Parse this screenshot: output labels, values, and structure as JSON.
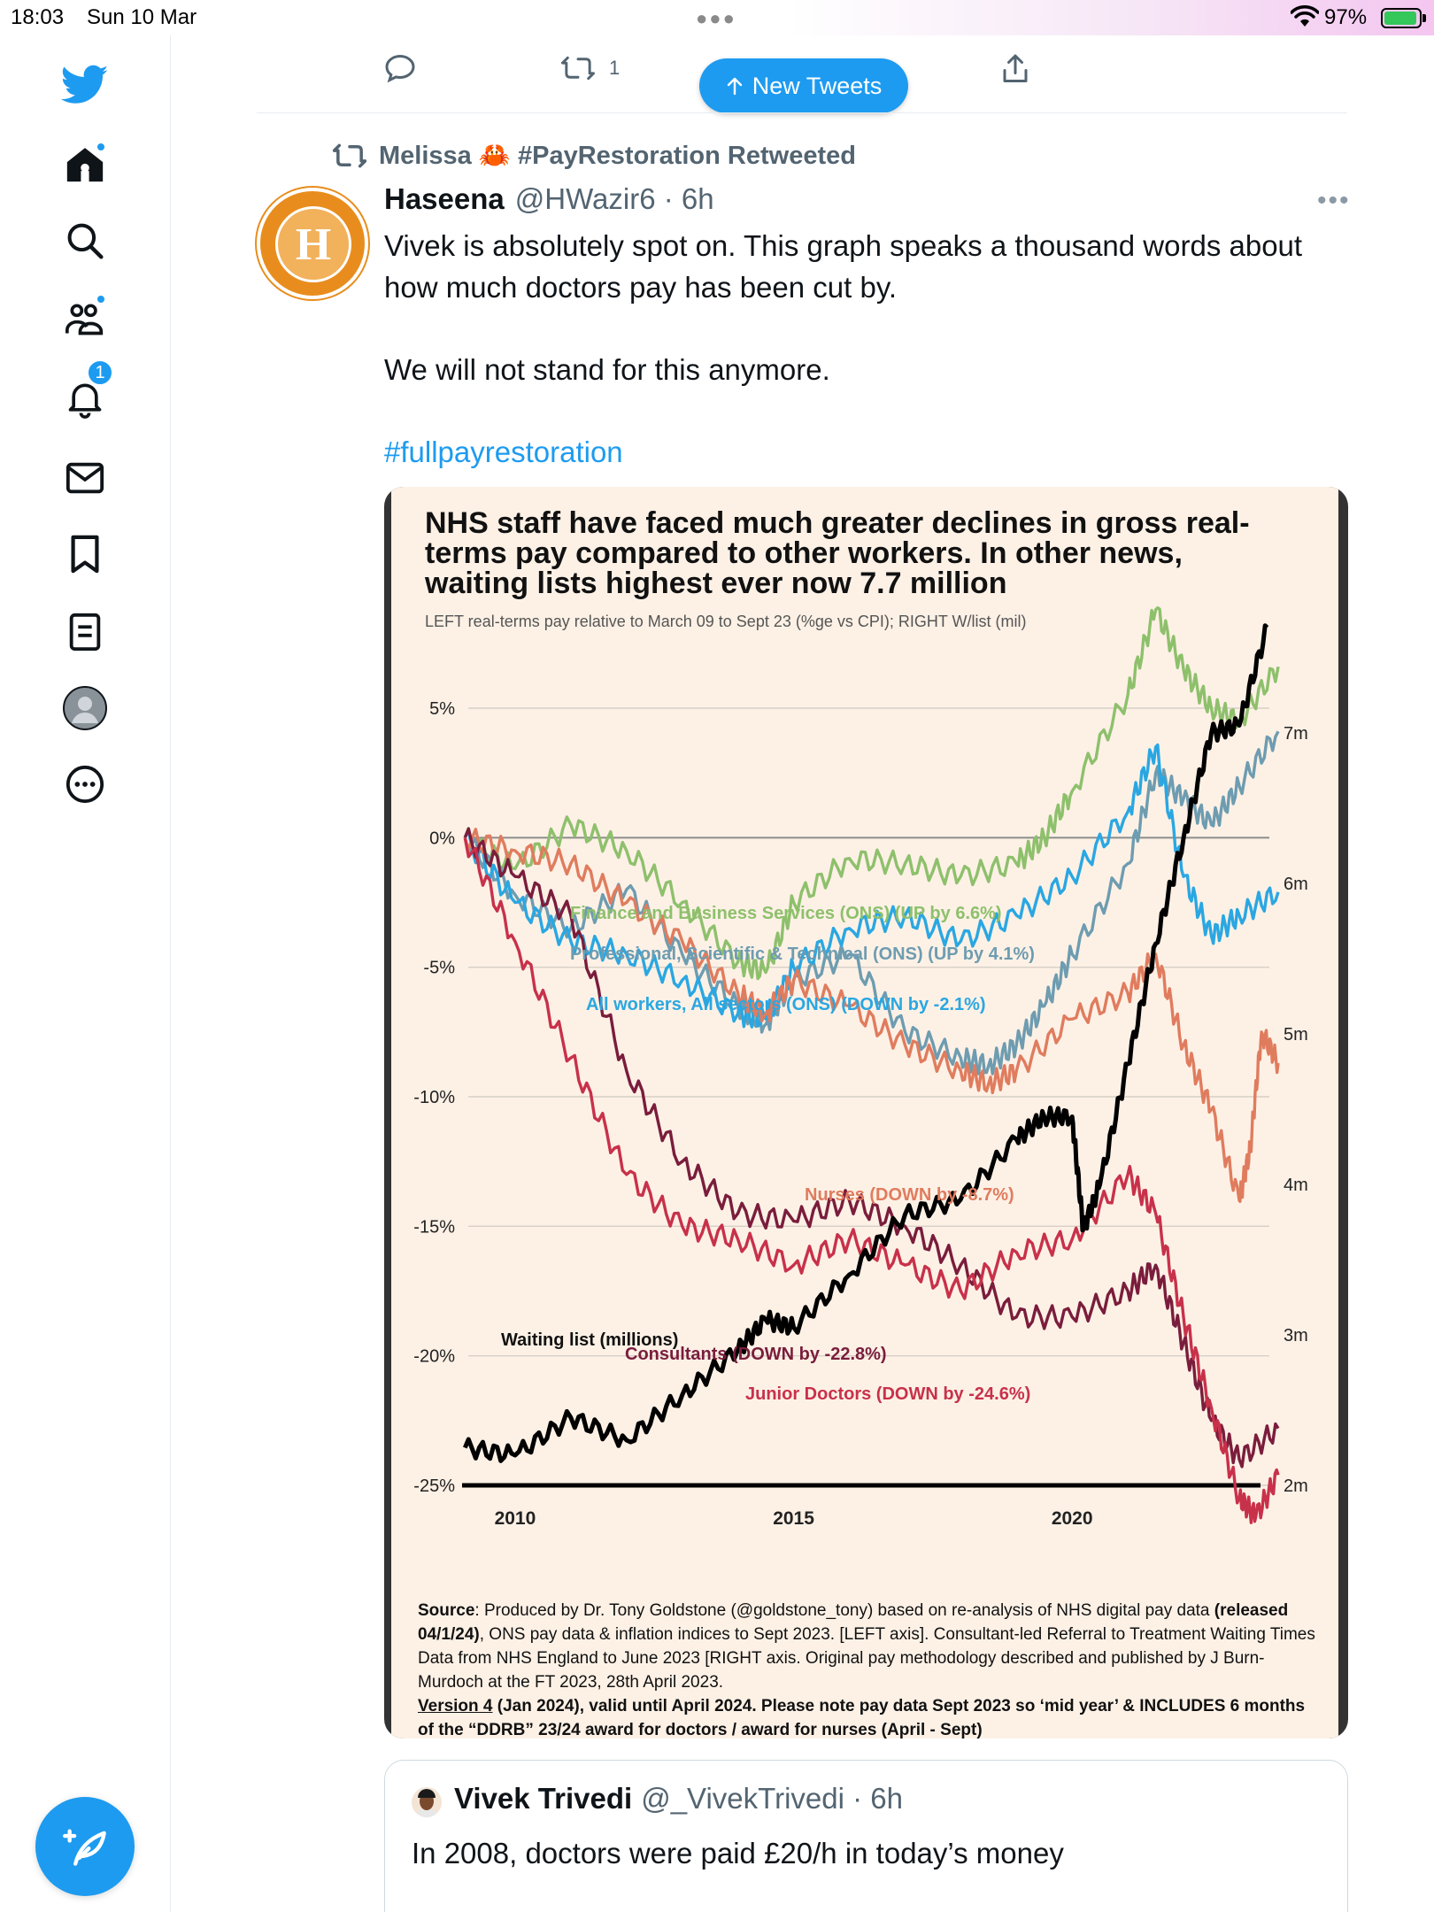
{
  "status_bar": {
    "time": "18:03",
    "date": "Sun 10 Mar",
    "battery": "97%"
  },
  "prev_tweet_actions": {
    "retweet_count": "1"
  },
  "new_tweets_label": "New Tweets",
  "tweet": {
    "retweeted_by": "Melissa 🦀 #PayRestoration Retweeted",
    "author_name": "Haseena",
    "author_meta": "@HWazir6 · 6h",
    "avatar_letter": "H",
    "text_1": "Vivek is absolutely spot on. This graph speaks a thousand words about how much doctors pay has been cut by.",
    "text_2": "We will not stand for this anymore.",
    "hashtag": "#fullpayrestoration"
  },
  "chart_card": {
    "title": "NHS staff have faced much greater declines in gross real-terms pay compared to other workers. In other news, waiting lists highest ever now 7.7 million",
    "subtitle": "LEFT real-terms pay relative to March 09 to Sept 23 (%ge vs CPI); RIGHT W/list (mil)",
    "source_label": "Source",
    "source_1": ": Produced by Dr. Tony Goldstone (@goldstone_tony) based on re-analysis of NHS digital pay data ",
    "source_bold": "(released 04/1/24)",
    "source_2": ", ONS pay data & inflation indices to Sept 2023. [LEFT axis]. Consultant-led Referral to Treatment Waiting Times Data from NHS England to June 2023 [RIGHT axis. Original pay methodology described and published by J Burn-Murdoch at the FT 2023, 28th April 2023.",
    "version_label": "Version 4",
    "version_text": " (Jan 2024), valid until April 2024. Please note pay data Sept 2023 so ‘mid year’ & INCLUDES 6 months of the “DDRB” 23/24 award  for doctors / award for nurses (April - Sept)"
  },
  "chart_data": {
    "type": "line",
    "title": "NHS staff have faced much greater declines in gross real-terms pay compared to other workers. In other news, waiting lists highest ever now 7.7 million",
    "subtitle": "LEFT real-terms pay relative to March 09 to Sept 23 (%ge vs CPI); RIGHT W/list (mil)",
    "x_ticks": [
      "2010",
      "2015",
      "2020"
    ],
    "xlim": [
      2009.0,
      2023.7
    ],
    "y_left_ticks": [
      "5%",
      "0%",
      "-5%",
      "-10%",
      "-15%",
      "-20%",
      "-25%"
    ],
    "ylim_left": [
      -25,
      5
    ],
    "y_right_ticks": [
      "7m",
      "6m",
      "5m",
      "4m",
      "3m",
      "2m"
    ],
    "ylim_right": [
      2,
      7
    ],
    "grid": "horizontal",
    "series": [
      {
        "name": "Finance and Business Services (ONS) (UP by 6.6%)",
        "color": "#8ec06c",
        "axis": "left",
        "x": [
          2009.1,
          2010.0,
          2011.0,
          2012.0,
          2013.0,
          2014.0,
          2014.5,
          2015.0,
          2016.0,
          2017.0,
          2018.0,
          2019.0,
          2019.5,
          2020.0,
          2021.0,
          2021.5,
          2022.0,
          2022.5,
          2023.0,
          2023.7
        ],
        "y": [
          0.0,
          -1.2,
          0.5,
          -0.5,
          -2.5,
          -4.8,
          -5.2,
          -2.5,
          -0.8,
          -1.0,
          -1.5,
          -1.0,
          0.0,
          1.8,
          5.5,
          8.8,
          6.5,
          5.0,
          4.5,
          6.6
        ]
      },
      {
        "name": "Professional, Scientific & Technical (ONS) (UP by 4.1%)",
        "color": "#6e9cb0",
        "axis": "left",
        "x": [
          2009.1,
          2010.0,
          2011.0,
          2012.0,
          2013.0,
          2014.0,
          2014.5,
          2015.0,
          2016.0,
          2017.0,
          2018.0,
          2018.5,
          2019.0,
          2019.5,
          2020.0,
          2021.0,
          2021.5,
          2022.0,
          2022.5,
          2023.0,
          2023.7
        ],
        "y": [
          0.0,
          -2.2,
          -3.5,
          -2.0,
          -4.5,
          -6.5,
          -7.2,
          -5.5,
          -4.5,
          -7.5,
          -8.5,
          -8.8,
          -8.0,
          -6.5,
          -4.5,
          -1.0,
          2.5,
          1.5,
          0.5,
          2.0,
          4.1
        ]
      },
      {
        "name": "All workers, All sectors (ONS) (DOWN by -2.1%)",
        "color": "#2aa7e2",
        "axis": "left",
        "x": [
          2009.1,
          2010.0,
          2011.0,
          2012.0,
          2013.0,
          2014.0,
          2014.5,
          2015.0,
          2016.0,
          2017.0,
          2018.0,
          2019.0,
          2020.0,
          2021.0,
          2021.5,
          2022.0,
          2022.5,
          2023.0,
          2023.7
        ],
        "y": [
          0.0,
          -2.5,
          -4.0,
          -4.5,
          -5.5,
          -6.8,
          -7.0,
          -5.0,
          -3.5,
          -3.0,
          -4.0,
          -3.0,
          -1.5,
          1.0,
          3.5,
          -1.5,
          -3.8,
          -3.0,
          -2.1
        ]
      },
      {
        "name": "Nurses (DOWN by -8.7%)",
        "color": "#e07c5e",
        "axis": "left",
        "x": [
          2009.1,
          2010.0,
          2011.0,
          2012.0,
          2013.0,
          2014.0,
          2014.5,
          2015.0,
          2016.0,
          2017.0,
          2018.0,
          2018.5,
          2019.0,
          2020.0,
          2021.0,
          2021.5,
          2022.0,
          2022.5,
          2023.0,
          2023.2,
          2023.4,
          2023.7
        ],
        "y": [
          0.0,
          -0.5,
          -1.0,
          -2.5,
          -4.0,
          -6.0,
          -6.8,
          -5.5,
          -6.5,
          -8.0,
          -9.0,
          -9.5,
          -9.0,
          -7.0,
          -6.0,
          -4.5,
          -8.0,
          -10.5,
          -14.0,
          -12.0,
          -7.5,
          -8.7
        ]
      },
      {
        "name": "Consultants (DOWN by -22.8%)",
        "color": "#7a1d3c",
        "axis": "left",
        "x": [
          2009.1,
          2010.0,
          2011.0,
          2012.0,
          2013.0,
          2014.0,
          2015.0,
          2016.0,
          2017.0,
          2018.0,
          2019.0,
          2020.0,
          2021.0,
          2021.5,
          2022.0,
          2022.5,
          2023.0,
          2023.7
        ],
        "y": [
          0.0,
          -1.5,
          -3.0,
          -9.0,
          -12.5,
          -14.5,
          -14.8,
          -14.0,
          -15.0,
          -16.5,
          -18.5,
          -18.5,
          -17.5,
          -16.5,
          -19.5,
          -22.5,
          -24.0,
          -22.8
        ]
      },
      {
        "name": "Junior Doctors (DOWN by -24.6%)",
        "color": "#c8314a",
        "axis": "left",
        "x": [
          2009.1,
          2010.0,
          2011.0,
          2012.0,
          2013.0,
          2014.0,
          2015.0,
          2016.0,
          2017.0,
          2018.0,
          2019.0,
          2020.0,
          2021.0,
          2021.5,
          2022.0,
          2022.5,
          2023.0,
          2023.3,
          2023.7
        ],
        "y": [
          0.0,
          -4.0,
          -8.5,
          -13.0,
          -15.0,
          -15.5,
          -16.5,
          -15.5,
          -16.5,
          -17.5,
          -16.0,
          -15.5,
          -13.0,
          -14.5,
          -18.5,
          -22.0,
          -25.5,
          -26.2,
          -24.6
        ]
      },
      {
        "name": "Waiting list (millions)",
        "color": "#000000",
        "axis": "right",
        "x": [
          2009.1,
          2010.0,
          2011.0,
          2012.0,
          2013.0,
          2014.0,
          2014.5,
          2015.0,
          2016.0,
          2017.0,
          2018.0,
          2019.0,
          2019.5,
          2020.0,
          2020.2,
          2020.5,
          2021.0,
          2021.5,
          2022.0,
          2022.5,
          2023.0,
          2023.5
        ],
        "y": [
          2.25,
          2.2,
          2.45,
          2.3,
          2.6,
          2.9,
          3.1,
          3.05,
          3.4,
          3.8,
          3.9,
          4.3,
          4.45,
          4.45,
          3.7,
          4.0,
          4.8,
          5.6,
          6.3,
          7.0,
          7.05,
          7.7
        ]
      }
    ],
    "annotations": [
      {
        "text": "Finance and Business Services (ONS) (UP by 6.6%)",
        "series": 0
      },
      {
        "text": "Professional, Scientific & Technical (ONS) (UP by 4.1%)",
        "series": 1
      },
      {
        "text": "All workers, All sectors (ONS) (DOWN by -2.1%)",
        "series": 2
      },
      {
        "text": "Nurses (DOWN by -8.7%)",
        "series": 3
      },
      {
        "text": "Consultants (DOWN by -22.8%)",
        "series": 4
      },
      {
        "text": "Junior Doctors (DOWN by -24.6%)",
        "series": 5
      },
      {
        "text": "Waiting list (millions)",
        "series": 6
      }
    ]
  },
  "quote_tweet": {
    "author_name": "Vivek Trivedi",
    "author_meta": "@_VivekTrivedi · 6h",
    "text": "In 2008, doctors were paid £20/h in today’s money"
  },
  "sidebar": {
    "notification_count": "1"
  },
  "colors": {
    "accent": "#1d9bf0",
    "text": "#0f1419",
    "muted": "#536471"
  }
}
